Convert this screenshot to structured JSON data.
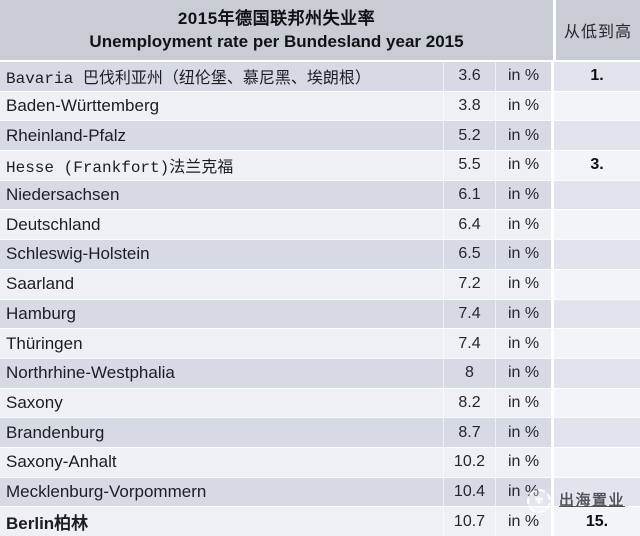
{
  "header": {
    "title_zh": "2015年德国联邦州失业率",
    "title_en": "Unemployment rate per Bundesland year 2015",
    "rank_header": "从低到高"
  },
  "table": {
    "rows": [
      {
        "name": "Bavaria 巴伐利亚州（纽伦堡、慕尼黑、埃朗根）",
        "value": "3.6",
        "unit": "in %",
        "rank": "1.",
        "emphasis": "cjk-serif"
      },
      {
        "name": "Baden-Württemberg",
        "value": "3.8",
        "unit": "in %",
        "rank": "",
        "emphasis": ""
      },
      {
        "name": "Rheinland-Pfalz",
        "value": "5.2",
        "unit": "in %",
        "rank": "",
        "emphasis": ""
      },
      {
        "name": "Hesse (Frankfort)法兰克福",
        "value": "5.5",
        "unit": "in %",
        "rank": "3.",
        "emphasis": "cjk-serif"
      },
      {
        "name": "Niedersachsen",
        "value": "6.1",
        "unit": "in %",
        "rank": "",
        "emphasis": ""
      },
      {
        "name": "Deutschland",
        "value": "6.4",
        "unit": "in %",
        "rank": "",
        "emphasis": ""
      },
      {
        "name": "Schleswig-Holstein",
        "value": "6.5",
        "unit": "in %",
        "rank": "",
        "emphasis": ""
      },
      {
        "name": "Saarland",
        "value": "7.2",
        "unit": "in %",
        "rank": "",
        "emphasis": ""
      },
      {
        "name": "Hamburg",
        "value": "7.4",
        "unit": "in %",
        "rank": "",
        "emphasis": ""
      },
      {
        "name": "Thüringen",
        "value": "7.4",
        "unit": "in %",
        "rank": "",
        "emphasis": ""
      },
      {
        "name": "Northrhine-Westphalia",
        "value": "8",
        "unit": "in %",
        "rank": "",
        "emphasis": ""
      },
      {
        "name": "Saxony",
        "value": "8.2",
        "unit": "in %",
        "rank": "",
        "emphasis": ""
      },
      {
        "name": "Brandenburg",
        "value": "8.7",
        "unit": "in %",
        "rank": "",
        "emphasis": ""
      },
      {
        "name": "Saxony-Anhalt",
        "value": "10.2",
        "unit": "in %",
        "rank": "",
        "emphasis": ""
      },
      {
        "name": "Mecklenburg-Vorpommern",
        "value": "10.4",
        "unit": "in %",
        "rank": "",
        "emphasis": ""
      },
      {
        "name": "Berlin柏林",
        "value": "10.7",
        "unit": "in %",
        "rank": "15.",
        "emphasis": "bold"
      }
    ]
  },
  "chart_data": {
    "type": "table",
    "title": "2015年德国联邦州失业率 / Unemployment rate per Bundesland year 2015",
    "categories": [
      "Bavaria",
      "Baden-Württemberg",
      "Rheinland-Pfalz",
      "Hesse",
      "Niedersachsen",
      "Deutschland",
      "Schleswig-Holstein",
      "Saarland",
      "Hamburg",
      "Thüringen",
      "Northrhine-Westphalia",
      "Saxony",
      "Brandenburg",
      "Saxony-Anhalt",
      "Mecklenburg-Vorpommern",
      "Berlin"
    ],
    "values": [
      3.6,
      3.8,
      5.2,
      5.5,
      6.1,
      6.4,
      6.5,
      7.2,
      7.4,
      7.4,
      8,
      8.2,
      8.7,
      10.2,
      10.4,
      10.7
    ],
    "unit": "in %",
    "ranks_shown": {
      "Bavaria": "1.",
      "Hesse": "3.",
      "Berlin": "15."
    }
  },
  "watermark": {
    "brand": "出海置业"
  },
  "colors": {
    "header_bg": "#c8ccd4",
    "row_dark": "#d6dae5",
    "row_light": "#eef0f6",
    "separator": "#ffffff",
    "text": "#1d1d23"
  }
}
